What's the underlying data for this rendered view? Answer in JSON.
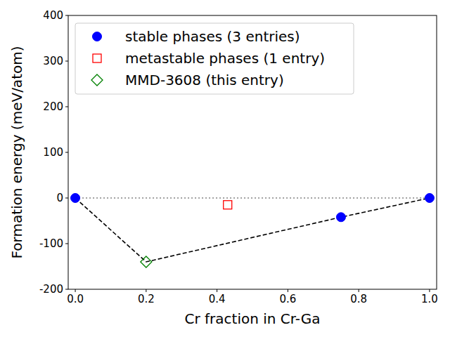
{
  "chart_data": {
    "type": "scatter",
    "x_label": "Cr fraction in Cr-Ga",
    "y_label": "Formation energy (meV/atom)",
    "xlim": [
      -0.02,
      1.02
    ],
    "ylim": [
      -200,
      400
    ],
    "xticks": [
      {
        "value": 0,
        "label": "0.0"
      },
      0.2,
      0.4,
      0.6,
      0.8,
      {
        "value": 1,
        "label": "1.0"
      }
    ],
    "yticks": [
      -200,
      -100,
      0,
      100,
      200,
      300,
      400
    ],
    "legend": "upper-left",
    "series": [
      {
        "name": "stable phases (3 entries)",
        "type": "scatter",
        "marker": "circle",
        "color": "#0000ff",
        "x": [
          0,
          0.75,
          1
        ],
        "values": [
          0,
          -42,
          0
        ]
      },
      {
        "name": "metastable phases (1 entry)",
        "type": "scatter",
        "marker": "open-square",
        "color": "#ff0000",
        "x": [
          0.43
        ],
        "values": [
          -15
        ]
      },
      {
        "name": "MMD-3608 (this entry)",
        "type": "scatter",
        "marker": "open-diamond",
        "color": "#008000",
        "x": [
          0.2
        ],
        "values": [
          -140
        ]
      },
      {
        "type": "line",
        "line_style": "dashed",
        "color": "#000000",
        "x": [
          0,
          0.2,
          0.75,
          1
        ],
        "values": [
          0,
          -140,
          -42,
          0
        ]
      },
      {
        "type": "line",
        "line_style": "dotted",
        "color": "#808080",
        "x": [
          0,
          1
        ],
        "values": [
          0,
          0
        ]
      }
    ]
  }
}
